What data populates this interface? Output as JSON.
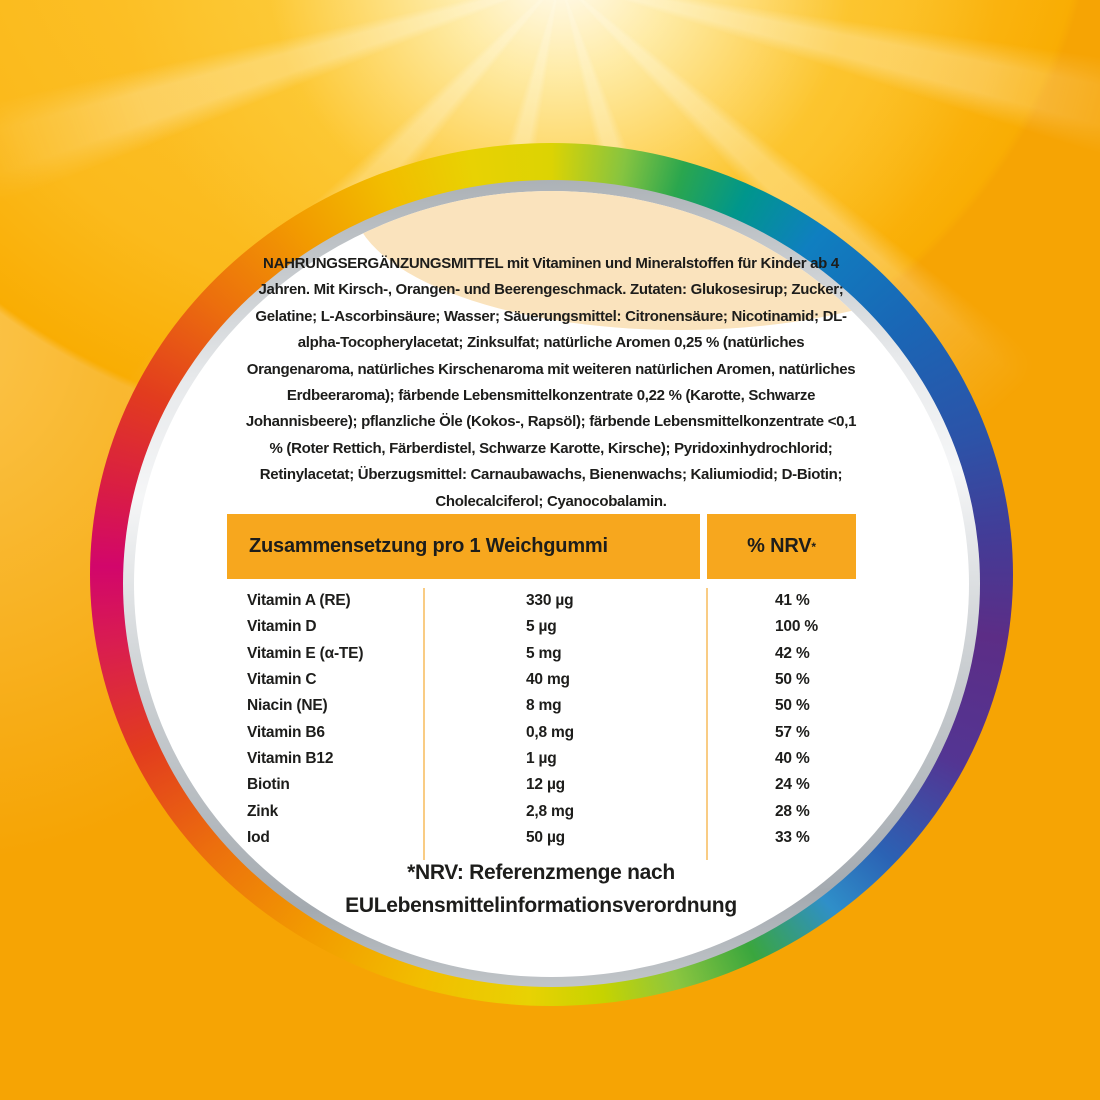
{
  "label": {
    "ingredients_text": "NAHRUNGSERGÄNZUNGSMITTEL mit Vitaminen und Mineralstoffen für Kinder ab 4 Jahren. Mit Kirsch-, Orangen- und Beerengeschmack. Zutaten: Glukosesirup; Zucker; Gelatine; L-Ascorbinsäure; Wasser; Säuerungsmittel: Citronensäure; Nicotinamid; DL-alpha-Tocopherylacetat; Zinksulfat; natürliche Aromen 0,25 % (natürliches Orangenaroma, natürliches Kirschenaroma mit weiteren natürlichen Aromen, natürliches Erdbeeraroma); färbende Lebensmittelkonzentrate 0,22 % (Karotte, Schwarze Johannisbeere); pflanzliche Öle (Kokos-, Rapsöl); färbende Lebensmittelkonzentrate <0,1 % (Roter Rettich, Färberdistel, Schwarze Karotte, Kirsche); Pyridoxinhydrochlorid; Retinylacetat; Überzugsmittel: Carnaubawachs, Bienenwachs; Kaliumiodid; D-Biotin; Cholecalciferol; Cyanocobalamin.",
    "table": {
      "header_left": "Zusammensetzung pro 1 Weichgummi",
      "header_right": "% NRV",
      "header_right_note": "*",
      "rows": [
        {
          "name": "Vitamin A (RE)",
          "amount": "330 µg",
          "nrv": "41 %"
        },
        {
          "name": "Vitamin D",
          "amount": "5 µg",
          "nrv": "100 %"
        },
        {
          "name": "Vitamin E (α-TE)",
          "amount": "5 mg",
          "nrv": "42 %"
        },
        {
          "name": "Vitamin C",
          "amount": "40 mg",
          "nrv": "50 %"
        },
        {
          "name": "Niacin (NE)",
          "amount": "8 mg",
          "nrv": "50 %"
        },
        {
          "name": "Vitamin B6",
          "amount": "0,8 mg",
          "nrv": "57 %"
        },
        {
          "name": "Vitamin B12",
          "amount": "1 µg",
          "nrv": "40 %"
        },
        {
          "name": "Biotin",
          "amount": "12 µg",
          "nrv": "24 %"
        },
        {
          "name": "Zink",
          "amount": "2,8 mg",
          "nrv": "28 %"
        },
        {
          "name": "Iod",
          "amount": "50 µg",
          "nrv": "33 %"
        }
      ]
    },
    "footnote_line1": "*NRV: Referenzmenge nach",
    "footnote_line2": "EULebensmittelinformationsverordnung",
    "colors": {
      "background_orange": "#f6a404",
      "table_header_orange": "#f7a71e",
      "column_divider": "#f9cc84",
      "text_black": "#1d1d1b",
      "sun_glow_peach": "#fae3bd",
      "ring_magenta": "#d2066b",
      "ring_purple": "#5c2d86"
    }
  }
}
